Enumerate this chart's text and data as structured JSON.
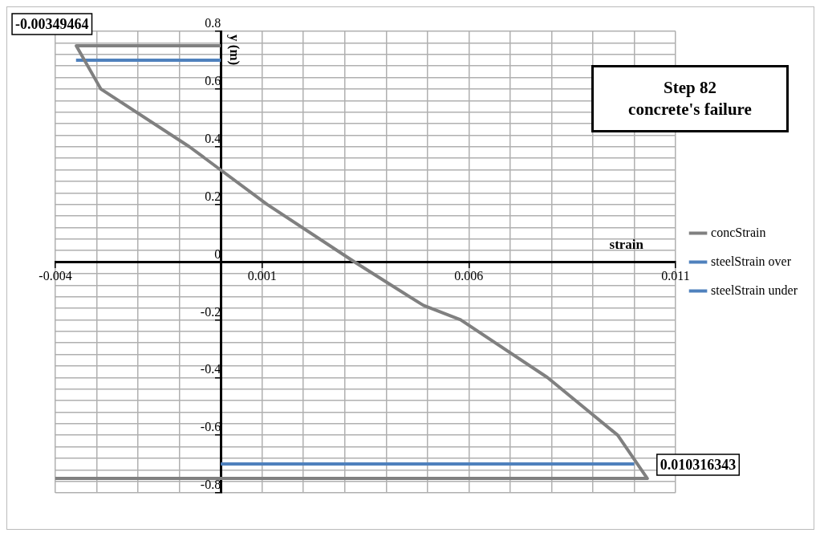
{
  "chart_data": {
    "type": "line",
    "xlabel": "strain",
    "ylabel": "y (m)",
    "xlim": [
      -0.004,
      0.011
    ],
    "ylim": [
      -0.8,
      0.8
    ],
    "xticks": [
      {
        "value": -0.004,
        "label": "-0.004"
      },
      {
        "value": -0.003,
        "label": null
      },
      {
        "value": -0.002,
        "label": null
      },
      {
        "value": -0.001,
        "label": null
      },
      {
        "value": 0,
        "label": null
      },
      {
        "value": 0.001,
        "label": "0.001"
      },
      {
        "value": 0.002,
        "label": null
      },
      {
        "value": 0.003,
        "label": null
      },
      {
        "value": 0.004,
        "label": null
      },
      {
        "value": 0.005,
        "label": null
      },
      {
        "value": 0.006,
        "label": "0.006"
      },
      {
        "value": 0.007,
        "label": null
      },
      {
        "value": 0.008,
        "label": null
      },
      {
        "value": 0.009,
        "label": null
      },
      {
        "value": 0.01,
        "label": null
      },
      {
        "value": 0.011,
        "label": "0.011"
      }
    ],
    "yticks": [
      {
        "value": -0.8,
        "label": "-0.8"
      },
      {
        "value": -0.76,
        "label": null
      },
      {
        "value": -0.72,
        "label": null
      },
      {
        "value": -0.68,
        "label": null
      },
      {
        "value": -0.64,
        "label": null
      },
      {
        "value": -0.6,
        "label": "-0.6"
      },
      {
        "value": -0.56,
        "label": null
      },
      {
        "value": -0.52,
        "label": null
      },
      {
        "value": -0.48,
        "label": null
      },
      {
        "value": -0.44,
        "label": null
      },
      {
        "value": -0.4,
        "label": "-0.4"
      },
      {
        "value": -0.36,
        "label": null
      },
      {
        "value": -0.32,
        "label": null
      },
      {
        "value": -0.28,
        "label": null
      },
      {
        "value": -0.24,
        "label": null
      },
      {
        "value": -0.2,
        "label": "-0.2"
      },
      {
        "value": -0.16,
        "label": null
      },
      {
        "value": -0.12,
        "label": null
      },
      {
        "value": -0.08,
        "label": null
      },
      {
        "value": -0.04,
        "label": null
      },
      {
        "value": 0,
        "label": "0"
      },
      {
        "value": 0.04,
        "label": null
      },
      {
        "value": 0.08,
        "label": null
      },
      {
        "value": 0.12,
        "label": null
      },
      {
        "value": 0.16,
        "label": null
      },
      {
        "value": 0.2,
        "label": "0.2"
      },
      {
        "value": 0.24,
        "label": null
      },
      {
        "value": 0.28,
        "label": null
      },
      {
        "value": 0.32,
        "label": null
      },
      {
        "value": 0.36,
        "label": null
      },
      {
        "value": 0.4,
        "label": "0.4"
      },
      {
        "value": 0.44,
        "label": null
      },
      {
        "value": 0.48,
        "label": null
      },
      {
        "value": 0.52,
        "label": null
      },
      {
        "value": 0.56,
        "label": null
      },
      {
        "value": 0.6,
        "label": "0.6"
      },
      {
        "value": 0.64,
        "label": null
      },
      {
        "value": 0.68,
        "label": null
      },
      {
        "value": 0.72,
        "label": null
      },
      {
        "value": 0.76,
        "label": null
      },
      {
        "value": 0.8,
        "label": "0.8"
      }
    ],
    "grid": true,
    "legend": "right",
    "marker": "none",
    "line_style": "solid",
    "series": [
      {
        "name": "concStrain",
        "color": "#808080",
        "x": [
          0,
          -0.00349464,
          -0.0029,
          -0.00076,
          0.00112,
          0.00324,
          0.0049,
          0.0058,
          0.0079,
          0.0096,
          0.010316343,
          -0.004
        ],
        "values": [
          0.75,
          0.75,
          0.6,
          0.4,
          0.2,
          0,
          -0.15,
          -0.2,
          -0.4,
          -0.6,
          -0.75,
          -0.75
        ]
      },
      {
        "name": "steelStrain over",
        "color": "#4f81bd",
        "x": [
          -0.0035,
          0
        ],
        "values": [
          0.7,
          0.7
        ]
      },
      {
        "name": "steelStrain under",
        "color": "#4f81bd",
        "x": [
          0,
          0.01
        ],
        "values": [
          -0.7,
          -0.7
        ]
      }
    ],
    "annotations": [
      {
        "text": "-0.00349464",
        "x": -0.00349464,
        "y": 0.75
      },
      {
        "text": "0.010316343",
        "x": 0.010316343,
        "y": -0.75
      },
      "Step 82\nconcrete's failure"
    ]
  }
}
